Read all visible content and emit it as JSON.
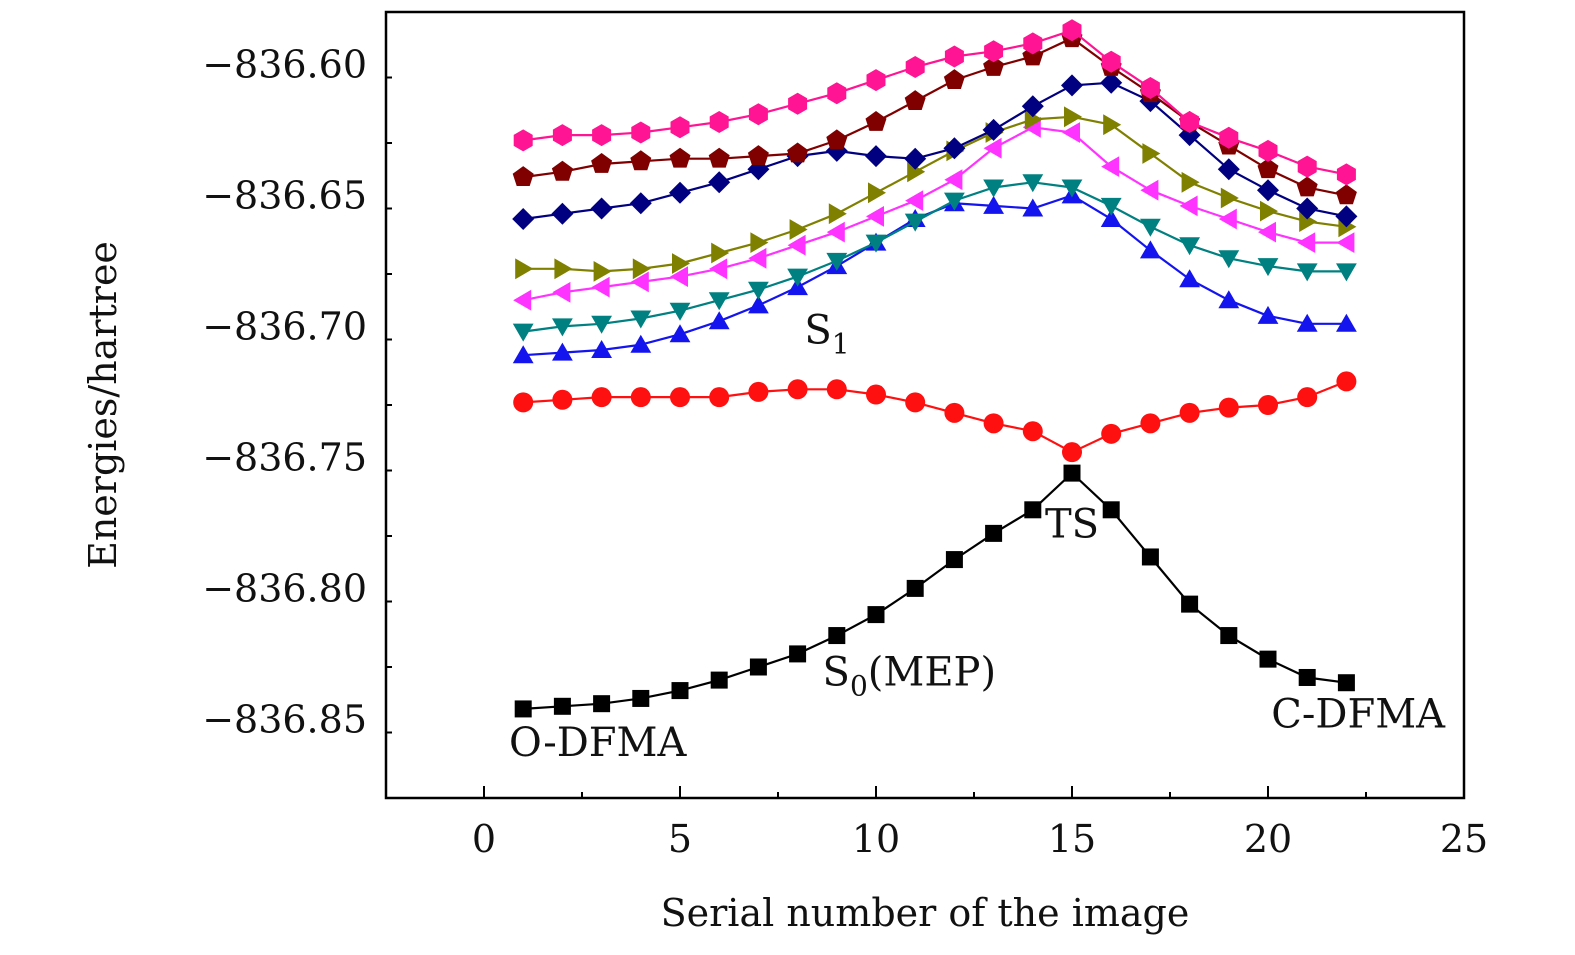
{
  "chart_data": {
    "type": "line",
    "xlabel": "Serial number of the image",
    "ylabel": "Energies/hartree",
    "xlim": [
      -2.5,
      25
    ],
    "ylim": [
      -836.88,
      -836.58
    ],
    "xticks": [
      0,
      5,
      10,
      15,
      20,
      25
    ],
    "yticks": [
      -836.85,
      -836.8,
      -836.75,
      -836.7,
      -836.65,
      -836.6
    ],
    "xtick_labels": [
      "0",
      "5",
      "10",
      "15",
      "20",
      "25"
    ],
    "ytick_labels": [
      "−836.85",
      "−836.80",
      "−836.75",
      "−836.70",
      "−836.65",
      "−836.60"
    ],
    "grid": false,
    "legend": "none",
    "x": [
      1,
      2,
      3,
      4,
      5,
      6,
      7,
      8,
      9,
      10,
      11,
      12,
      13,
      14,
      15,
      16,
      17,
      18,
      19,
      20,
      21,
      22
    ],
    "series": [
      {
        "marker": "square",
        "color": "#000000",
        "values": [
          -836.846,
          -836.845,
          -836.844,
          -836.842,
          -836.839,
          -836.835,
          -836.83,
          -836.825,
          -836.818,
          -836.81,
          -836.8,
          -836.789,
          -836.779,
          -836.77,
          -836.756,
          -836.77,
          -836.788,
          -836.806,
          -836.818,
          -836.827,
          -836.834,
          -836.836
        ]
      },
      {
        "marker": "circle",
        "color": "#ff1010",
        "values": [
          -836.729,
          -836.728,
          -836.727,
          -836.727,
          -836.727,
          -836.727,
          -836.725,
          -836.724,
          -836.724,
          -836.726,
          -836.729,
          -836.733,
          -836.737,
          -836.74,
          -836.748,
          -836.741,
          -836.737,
          -836.733,
          -836.731,
          -836.73,
          -836.727,
          -836.721
        ]
      },
      {
        "marker": "triangle-up",
        "color": "#1414ee",
        "values": [
          -836.711,
          -836.71,
          -836.709,
          -836.707,
          -836.703,
          -836.698,
          -836.692,
          -836.685,
          -836.677,
          -836.668,
          -836.659,
          -836.653,
          -836.654,
          -836.655,
          -836.65,
          -836.659,
          -836.671,
          -836.682,
          -836.69,
          -836.696,
          -836.699,
          -836.699
        ]
      },
      {
        "marker": "triangle-down",
        "color": "#008080",
        "values": [
          -836.702,
          -836.7,
          -836.699,
          -836.697,
          -836.694,
          -836.69,
          -836.686,
          -836.681,
          -836.675,
          -836.668,
          -836.66,
          -836.652,
          -836.647,
          -836.645,
          -836.647,
          -836.654,
          -836.662,
          -836.669,
          -836.674,
          -836.677,
          -836.679,
          -836.679
        ]
      },
      {
        "marker": "triangle-left",
        "color": "#ff33ff",
        "values": [
          -836.69,
          -836.687,
          -836.685,
          -836.683,
          -836.681,
          -836.678,
          -836.674,
          -836.669,
          -836.664,
          -836.658,
          -836.652,
          -836.644,
          -836.632,
          -836.624,
          -836.626,
          -836.639,
          -836.648,
          -836.654,
          -836.659,
          -836.664,
          -836.668,
          -836.668
        ]
      },
      {
        "marker": "triangle-right",
        "color": "#808000",
        "values": [
          -836.678,
          -836.678,
          -836.679,
          -836.678,
          -836.676,
          -836.672,
          -836.668,
          -836.663,
          -836.657,
          -836.649,
          -836.641,
          -836.633,
          -836.626,
          -836.621,
          -836.62,
          -836.623,
          -836.634,
          -836.645,
          -836.651,
          -836.656,
          -836.66,
          -836.662
        ]
      },
      {
        "marker": "diamond",
        "color": "#000080",
        "values": [
          -836.659,
          -836.657,
          -836.655,
          -836.653,
          -836.649,
          -836.645,
          -836.64,
          -836.635,
          -836.633,
          -836.635,
          -836.636,
          -836.632,
          -836.625,
          -836.616,
          -836.608,
          -836.607,
          -836.614,
          -836.627,
          -836.64,
          -836.648,
          -836.655,
          -836.658
        ]
      },
      {
        "marker": "pentagon",
        "color": "#800000",
        "values": [
          -836.643,
          -836.641,
          -836.638,
          -836.637,
          -836.636,
          -836.636,
          -836.635,
          -836.634,
          -836.629,
          -836.622,
          -836.614,
          -836.606,
          -836.601,
          -836.597,
          -836.59,
          -836.601,
          -836.611,
          -836.622,
          -836.631,
          -836.64,
          -836.647,
          -836.65
        ]
      },
      {
        "marker": "hexagon",
        "color": "#ff1493",
        "values": [
          -836.629,
          -836.627,
          -836.627,
          -836.626,
          -836.624,
          -836.622,
          -836.619,
          -836.615,
          -836.611,
          -836.606,
          -836.601,
          -836.597,
          -836.595,
          -836.592,
          -836.587,
          -836.599,
          -836.609,
          -836.622,
          -836.628,
          -836.633,
          -836.639,
          -836.642
        ]
      }
    ],
    "annotations": [
      {
        "id": "s1",
        "text": "S",
        "sub": "1",
        "x": 8.75,
        "y": -836.7065
      },
      {
        "id": "ts",
        "text": "TS",
        "x": 15.0,
        "y": -836.7805
      },
      {
        "id": "s0",
        "text": "S",
        "sub": "0",
        "suffix": "(MEP)",
        "x": 10.85,
        "y": -836.837
      },
      {
        "id": "odfma",
        "text": "O-DFMA",
        "x": 2.9,
        "y": -836.864
      },
      {
        "id": "cdfma",
        "text": "C-DFMA",
        "x": 22.3,
        "y": -836.853
      }
    ]
  }
}
